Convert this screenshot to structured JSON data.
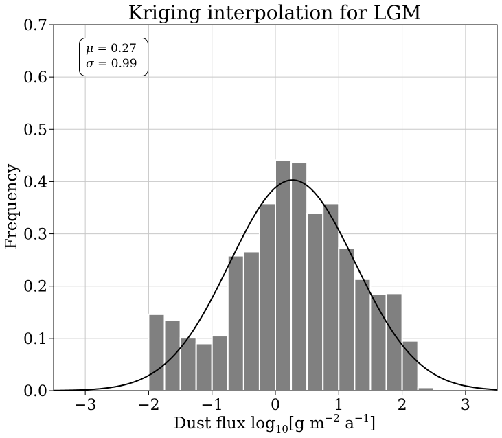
{
  "chart_data": {
    "type": "bar",
    "title": "Kriging interpolation for LGM",
    "xlabel": "Dust flux log",
    "xlabel_sub": "10",
    "xlabel_unit_prefix": "[g m",
    "xlabel_exp1": "−2",
    "xlabel_unit_mid": " a",
    "xlabel_exp2": "−1",
    "xlabel_unit_suffix": "]",
    "ylabel": "Frequency",
    "xlim": [
      -3.5,
      3.5
    ],
    "ylim": [
      0,
      0.7
    ],
    "xticks": [
      -3,
      -2,
      -1,
      0,
      1,
      2,
      3
    ],
    "xtick_labels": [
      "−3",
      "−2",
      "−1",
      "0",
      "1",
      "2",
      "3"
    ],
    "yticks": [
      0.0,
      0.1,
      0.2,
      0.3,
      0.4,
      0.5,
      0.6,
      0.7
    ],
    "ytick_labels": [
      "0.0",
      "0.1",
      "0.2",
      "0.3",
      "0.4",
      "0.5",
      "0.6",
      "0.7"
    ],
    "grid": true,
    "bin_width": 0.25,
    "bins": [
      {
        "x0": -2.0,
        "x1": -1.75,
        "value": 0.146
      },
      {
        "x0": -1.75,
        "x1": -1.5,
        "value": 0.135
      },
      {
        "x0": -1.5,
        "x1": -1.25,
        "value": 0.101
      },
      {
        "x0": -1.25,
        "x1": -1.0,
        "value": 0.09
      },
      {
        "x0": -1.0,
        "x1": -0.75,
        "value": 0.105
      },
      {
        "x0": -0.75,
        "x1": -0.5,
        "value": 0.258
      },
      {
        "x0": -0.5,
        "x1": -0.25,
        "value": 0.266
      },
      {
        "x0": -0.25,
        "x1": 0.0,
        "value": 0.358
      },
      {
        "x0": 0.0,
        "x1": 0.25,
        "value": 0.441
      },
      {
        "x0": 0.25,
        "x1": 0.5,
        "value": 0.436
      },
      {
        "x0": 0.5,
        "x1": 0.75,
        "value": 0.339
      },
      {
        "x0": 0.75,
        "x1": 1.0,
        "value": 0.358
      },
      {
        "x0": 1.0,
        "x1": 1.25,
        "value": 0.273
      },
      {
        "x0": 1.25,
        "x1": 1.5,
        "value": 0.213
      },
      {
        "x0": 1.5,
        "x1": 1.75,
        "value": 0.185
      },
      {
        "x0": 1.75,
        "x1": 2.0,
        "value": 0.186
      },
      {
        "x0": 2.0,
        "x1": 2.25,
        "value": 0.095
      },
      {
        "x0": 2.25,
        "x1": 2.5,
        "value": 0.006
      }
    ],
    "fit_curve": {
      "type": "normal",
      "mu": 0.27,
      "sigma": 0.99
    },
    "annotation": {
      "mu_symbol": "μ",
      "mu_text": " = 0.27",
      "sigma_symbol": "σ",
      "sigma_text": " = 0.99",
      "placement": "top-left"
    },
    "colors": {
      "bar": "#808080",
      "bar_edge": "#ffffff",
      "curve": "#000000",
      "grid": "#c8c8c8"
    }
  }
}
